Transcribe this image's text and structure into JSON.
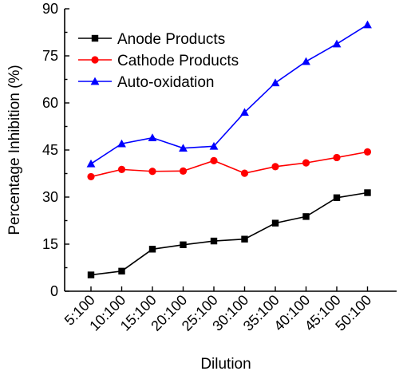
{
  "chart_data": {
    "type": "line",
    "xlabel": "Dilution",
    "ylabel": "Percentage Inhibition (%)",
    "ylim": [
      0,
      90
    ],
    "yticks": [
      0,
      15,
      30,
      45,
      60,
      75,
      90
    ],
    "categories": [
      "5:100",
      "10:100",
      "15:100",
      "20:100",
      "25:100",
      "30:100",
      "35:100",
      "40:100",
      "45:100",
      "50:100"
    ],
    "grid": false,
    "legend_position": "top-left",
    "series": [
      {
        "name": "Anode Products",
        "color": "#000000",
        "marker": "square",
        "values": [
          5.2,
          6.4,
          13.4,
          14.8,
          16.0,
          16.6,
          21.7,
          23.8,
          29.8,
          31.4
        ]
      },
      {
        "name": "Cathode Products",
        "color": "#ff0000",
        "marker": "circle",
        "values": [
          36.5,
          38.8,
          38.2,
          38.3,
          41.6,
          37.6,
          39.7,
          40.9,
          42.6,
          44.4
        ]
      },
      {
        "name": "Auto-oxidation",
        "color": "#0000ff",
        "marker": "triangle",
        "values": [
          40.6,
          47.0,
          48.9,
          45.6,
          46.2,
          57.0,
          66.4,
          73.2,
          78.8,
          84.9
        ]
      }
    ]
  }
}
